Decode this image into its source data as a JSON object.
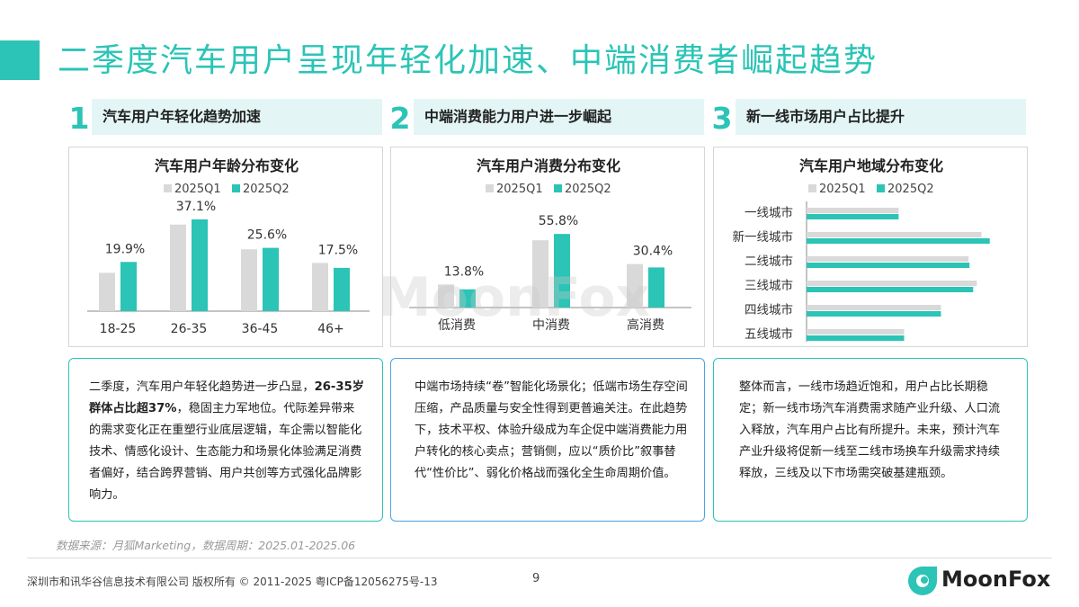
{
  "page_title": "二季度汽车用户呈现年轻化加速、中端消费者崛起趋势",
  "sections": [
    {
      "num": "1",
      "heading": "汽车用户年轻化趋势加速"
    },
    {
      "num": "2",
      "heading": "中端消费能力用户进一步崛起"
    },
    {
      "num": "3",
      "heading": "新一线市场用户占比提升"
    }
  ],
  "descriptions": [
    {
      "pre": "二季度，汽车用户年轻化趋势进一步凸显，",
      "bold": "26-35岁群体占比超37%",
      "post": "，稳固主力军地位。代际差异带来的需求变化正在重塑行业底层逻辑，车企需以智能化技术、情感化设计、生态能力和场景化体验满足消费者偏好，结合跨界营销、用户共创等方式强化品牌影响力。"
    },
    {
      "pre": "中端市场持续“卷”智能化场景化；低端市场生存空间压缩，产品质量与安全性得到更普遍关注。在此趋势下，技术平权、体验升级成为车企促中端消费能力用户转化的核心卖点；营销侧，应以“质价比”叙事替代“性价比”、弱化价格战而强化全生命周期价值。",
      "bold": "",
      "post": ""
    },
    {
      "pre": "整体而言，一线市场趋近饱和，用户占比长期稳定；新一线市场汽车消费需求随产业升级、人口流入释放，汽车用户占比有所提升。未来，预计汽车产业升级将促新一线至二线市场换车升级需求持续释放，三线及以下市场需突破基建瓶颈。",
      "bold": "",
      "post": ""
    }
  ],
  "source": "数据来源：月狐Marketing，数据周期：2025.01-2025.06",
  "copyright": "深圳市和讯华谷信息技术有限公司 版权所有 © 2011-2025 粤ICP备12056275号-13",
  "page_number": "9",
  "logo_text": "MoonFox",
  "watermark": "MoonFox",
  "colors": {
    "accent": "#2bc4b6",
    "q1": "#d9d9d9",
    "q2": "#2bc4b6"
  },
  "chart_data": [
    {
      "type": "bar",
      "title": "汽车用户年龄分布变化",
      "categories": [
        "18-25",
        "26-35",
        "36-45",
        "46+"
      ],
      "series": [
        {
          "name": "2025Q1",
          "values": [
            15.5,
            35.0,
            25.0,
            19.5
          ]
        },
        {
          "name": "2025Q2",
          "values": [
            19.9,
            37.1,
            25.6,
            17.5
          ]
        }
      ],
      "data_labels": [
        "19.9%",
        "37.1%",
        "25.6%",
        "17.5%"
      ],
      "ylim": [
        0,
        40
      ]
    },
    {
      "type": "bar",
      "title": "汽车用户消费分布变化",
      "categories": [
        "低消费",
        "中消费",
        "高消费"
      ],
      "series": [
        {
          "name": "2025Q1",
          "values": [
            17.5,
            51.0,
            33.0
          ]
        },
        {
          "name": "2025Q2",
          "values": [
            13.8,
            55.8,
            30.4
          ]
        }
      ],
      "data_labels": [
        "13.8%",
        "55.8%",
        "30.4%"
      ],
      "ylim": [
        0,
        60
      ]
    },
    {
      "type": "bar",
      "orientation": "horizontal",
      "title": "汽车用户地域分布变化",
      "categories": [
        "一线城市",
        "新一线城市",
        "二线城市",
        "三线城市",
        "四线城市",
        "五线城市"
      ],
      "series": [
        {
          "name": "2025Q1",
          "values": [
            100,
            190,
            176,
            185,
            146,
            106
          ]
        },
        {
          "name": "2025Q2",
          "values": [
            100,
            199,
            177,
            181,
            146,
            106
          ]
        }
      ],
      "xlim": [
        0,
        210
      ]
    }
  ]
}
